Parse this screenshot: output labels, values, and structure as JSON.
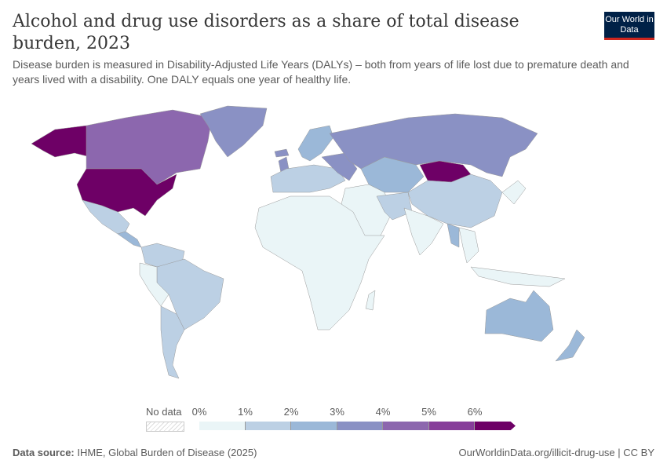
{
  "header": {
    "title": "Alcohol and drug use disorders as a share of total disease burden, 2023",
    "subtitle": "Disease burden is measured in Disability-Adjusted Life Years (DALYs) – both from years of life lost due to premature death and years lived with a disability. One DALY equals one year of healthy life.",
    "logo_text": "Our World in Data"
  },
  "legend": {
    "no_data_label": "No data",
    "ticks": [
      "0%",
      "1%",
      "2%",
      "3%",
      "4%",
      "5%",
      "6%"
    ],
    "colors": [
      "#eaf5f7",
      "#bcd0e4",
      "#9bb8d8",
      "#8a91c4",
      "#8c67ae",
      "#873e9a",
      "#6e0066"
    ],
    "no_data_color": "#ffffff"
  },
  "footer": {
    "source_label": "Data source:",
    "source_text": "IHME, Global Burden of Disease (2025)",
    "link": "OurWorldinData.org/illicit-drug-use | CC BY"
  }
}
